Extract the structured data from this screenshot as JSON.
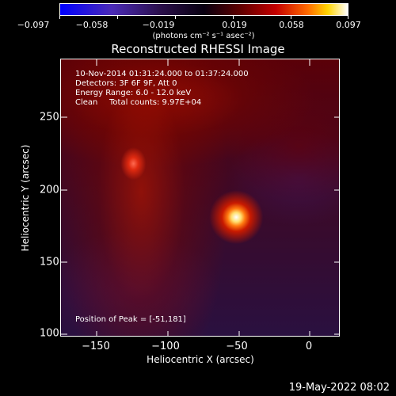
{
  "colorbar": {
    "tick_labels": [
      "−0.097",
      "−0.058",
      "−0.019",
      "0.019",
      "0.058",
      "0.097"
    ],
    "units": "(photons cm⁻² s⁻¹ asec⁻²)",
    "colors": [
      "#0000ff",
      "#2a0f4a",
      "#080010",
      "#c40000",
      "#ff6a00",
      "#ffffff"
    ]
  },
  "title": "Reconstructed RHESSI Image",
  "info": {
    "line1": "10-Nov-2014 01:31:24.000 to 01:37:24.000",
    "line2": "Detectors: 3F 6F 9F, Att 0",
    "line3": "Energy Range: 6.0 - 12.0 keV",
    "line4_left": "Clean",
    "line4_right": "Total counts: 9.97E+04"
  },
  "peak_text": "Position of Peak = [-51,181]",
  "axes": {
    "xlabel": "Heliocentric X (arcsec)",
    "ylabel": "Heliocentric Y (arcsec)",
    "xticks": [
      "−150",
      "−100",
      "−50",
      "0"
    ],
    "yticks": [
      "250",
      "200",
      "150",
      "100"
    ],
    "xlim": [
      -172,
      21
    ],
    "ylim": [
      98,
      290
    ]
  },
  "sources": [
    {
      "x": -51,
      "y": 181
    },
    {
      "x": -122,
      "y": 218
    }
  ],
  "timestamp": "19-May-2022 08:02"
}
